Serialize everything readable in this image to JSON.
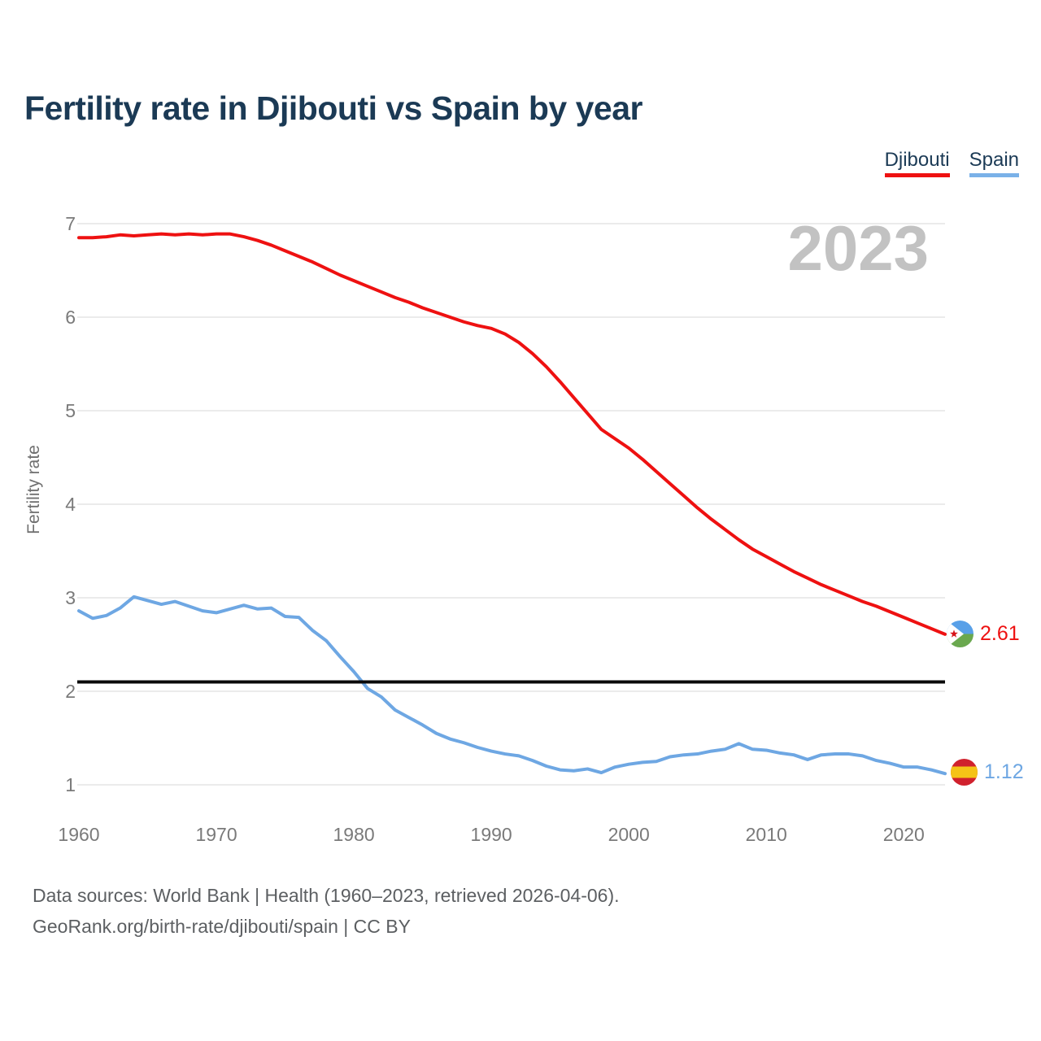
{
  "header": {
    "title": "Fertility rate in Djibouti vs Spain by year"
  },
  "legend": {
    "items": [
      {
        "label": "Djibouti",
        "color": "#ee1111"
      },
      {
        "label": "Spain",
        "color": "#7ab1e8"
      }
    ]
  },
  "watermark": "2023",
  "axes": {
    "y_title": "Fertility rate"
  },
  "chart_data": {
    "type": "line",
    "title": "Fertility rate in Djibouti vs Spain by year",
    "xlabel": "",
    "ylabel": "Fertility rate",
    "xlim": [
      1960,
      2023
    ],
    "ylim": [
      1,
      7
    ],
    "y_ticks": [
      1,
      2,
      3,
      4,
      5,
      6,
      7
    ],
    "x_ticks": [
      1960,
      1970,
      1980,
      1990,
      2000,
      2010,
      2020
    ],
    "grid": "horizontal",
    "legend_position": "top-right",
    "reference_line": {
      "value": 2.1,
      "color": "#0a0a0a"
    },
    "x": [
      1960,
      1961,
      1962,
      1963,
      1964,
      1965,
      1966,
      1967,
      1968,
      1969,
      1970,
      1971,
      1972,
      1973,
      1974,
      1975,
      1976,
      1977,
      1978,
      1979,
      1980,
      1981,
      1982,
      1983,
      1984,
      1985,
      1986,
      1987,
      1988,
      1989,
      1990,
      1991,
      1992,
      1993,
      1994,
      1995,
      1996,
      1997,
      1998,
      1999,
      2000,
      2001,
      2002,
      2003,
      2004,
      2005,
      2006,
      2007,
      2008,
      2009,
      2010,
      2011,
      2012,
      2013,
      2014,
      2015,
      2016,
      2017,
      2018,
      2019,
      2020,
      2021,
      2022,
      2023
    ],
    "series": [
      {
        "name": "Djibouti",
        "color": "#ee1111",
        "values": [
          6.85,
          6.85,
          6.86,
          6.88,
          6.87,
          6.88,
          6.89,
          6.88,
          6.89,
          6.88,
          6.89,
          6.89,
          6.86,
          6.82,
          6.77,
          6.71,
          6.65,
          6.59,
          6.52,
          6.45,
          6.39,
          6.33,
          6.27,
          6.21,
          6.16,
          6.1,
          6.05,
          6.0,
          5.95,
          5.91,
          5.88,
          5.82,
          5.73,
          5.61,
          5.47,
          5.31,
          5.14,
          4.97,
          4.8,
          4.7,
          4.6,
          4.48,
          4.35,
          4.22,
          4.09,
          3.96,
          3.84,
          3.73,
          3.62,
          3.52,
          3.44,
          3.36,
          3.28,
          3.21,
          3.14,
          3.08,
          3.02,
          2.96,
          2.91,
          2.85,
          2.79,
          2.73,
          2.67,
          2.61
        ]
      },
      {
        "name": "Spain",
        "color": "#6ea7e3",
        "values": [
          2.86,
          2.78,
          2.81,
          2.89,
          3.01,
          2.97,
          2.93,
          2.96,
          2.91,
          2.86,
          2.84,
          2.88,
          2.92,
          2.88,
          2.89,
          2.8,
          2.79,
          2.65,
          2.54,
          2.37,
          2.21,
          2.03,
          1.94,
          1.8,
          1.72,
          1.64,
          1.55,
          1.49,
          1.45,
          1.4,
          1.36,
          1.33,
          1.31,
          1.26,
          1.2,
          1.16,
          1.15,
          1.17,
          1.13,
          1.19,
          1.22,
          1.24,
          1.25,
          1.3,
          1.32,
          1.33,
          1.36,
          1.38,
          1.44,
          1.38,
          1.37,
          1.34,
          1.32,
          1.27,
          1.32,
          1.33,
          1.33,
          1.31,
          1.26,
          1.23,
          1.19,
          1.19,
          1.16,
          1.12
        ]
      }
    ]
  },
  "end_labels": {
    "djibouti": {
      "value": "2.61"
    },
    "spain": {
      "value": "1.12"
    }
  },
  "footer": {
    "line1": "Data sources: World Bank | Health (1960–2023, retrieved 2026-04-06).",
    "line2": "GeoRank.org/birth-rate/djibouti/spain | CC BY"
  }
}
